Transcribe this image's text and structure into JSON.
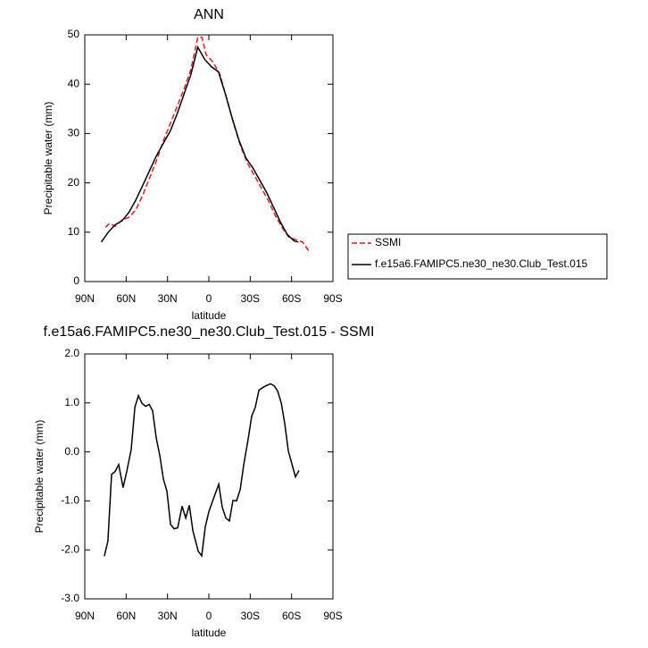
{
  "chart_data": [
    {
      "type": "line",
      "title": "ANN",
      "xlabel": "latitude",
      "ylabel": "Precipitable water (mm)",
      "xlim": [
        90,
        -90
      ],
      "ylim": [
        0,
        50
      ],
      "xticks": [
        {
          "value": 90,
          "label": "90N"
        },
        {
          "value": 60,
          "label": "60N"
        },
        {
          "value": 30,
          "label": "30N"
        },
        0,
        {
          "value": -30,
          "label": "30S"
        },
        {
          "value": -60,
          "label": "60S"
        },
        {
          "value": -90,
          "label": "90S"
        }
      ],
      "yticks": [
        0,
        10,
        20,
        30,
        40,
        50
      ],
      "legend": "outside right",
      "series": [
        {
          "name": "SSMI",
          "color": "#e8191c",
          "dash": true,
          "x": [
            75,
            72,
            68,
            63,
            58,
            53,
            48,
            43,
            38,
            33,
            28,
            23,
            18,
            13,
            8,
            5,
            2,
            -3,
            -8,
            -13,
            -18,
            -23,
            -28,
            -33,
            -38,
            -43,
            -48,
            -53,
            -58,
            -63,
            -68,
            -73
          ],
          "values": [
            11,
            11.8,
            11.2,
            12.5,
            13,
            14.5,
            17.5,
            21,
            24.5,
            28.5,
            32,
            35.5,
            39,
            43,
            49.5,
            49.5,
            46,
            44.5,
            42,
            37,
            32,
            27.5,
            24,
            21.5,
            19,
            16.5,
            13.5,
            11,
            9,
            8.5,
            8,
            6
          ]
        },
        {
          "name": "f.e15a6.FAMIPC5.ne30_ne30.Club_Test.015",
          "color": "#000000",
          "dash": false,
          "x": [
            78,
            73,
            68,
            63,
            58,
            53,
            48,
            43,
            38,
            33,
            28,
            23,
            18,
            13,
            8,
            3,
            -2,
            -7,
            -12,
            -17,
            -22,
            -27,
            -32,
            -37,
            -42,
            -47,
            -52,
            -57,
            -62,
            -65
          ],
          "values": [
            8,
            10,
            11.5,
            12.3,
            14,
            16.5,
            19.5,
            22.5,
            25.5,
            28,
            30.5,
            34,
            38,
            42,
            47.5,
            45,
            43.5,
            42.5,
            38,
            33,
            28.5,
            25,
            23,
            20.5,
            18,
            15,
            12,
            9.5,
            8.2,
            8
          ]
        }
      ]
    },
    {
      "type": "line",
      "title": "f.e15a6.FAMIPC5.ne30_ne30.Club_Test.015 - SSMI",
      "xlabel": "latitude",
      "ylabel": "Precipitable water (mm)",
      "xlim": [
        90,
        -90
      ],
      "ylim": [
        -3,
        2
      ],
      "xticks": [
        {
          "value": 90,
          "label": "90N"
        },
        {
          "value": 60,
          "label": "60N"
        },
        {
          "value": 30,
          "label": "30N"
        },
        0,
        {
          "value": -30,
          "label": "30S"
        },
        {
          "value": -60,
          "label": "60S"
        },
        {
          "value": -90,
          "label": "90S"
        }
      ],
      "yticks": [
        {
          "value": 2,
          "label": "2.0"
        },
        {
          "value": 1,
          "label": "1.0"
        },
        {
          "value": 0,
          "label": "0.0"
        },
        {
          "value": -1,
          "label": "-1.0"
        },
        {
          "value": -2,
          "label": "-2.0"
        },
        {
          "value": -3,
          "label": "-3.0"
        }
      ],
      "color": "#000000",
      "x": [
        75.8,
        73.2,
        70.6,
        68,
        65.4,
        62.2,
        59.6,
        56.3,
        53.7,
        51.1,
        48.5,
        45.9,
        43.3,
        40.8,
        38.2,
        35.6,
        33,
        30.4,
        27.8,
        25.2,
        22.6,
        19.4,
        16.8,
        14.2,
        11.6,
        7.7,
        5.2,
        2.6,
        0,
        -3.9,
        -7.2,
        -9.7,
        -12.3,
        -14.9,
        -17.5,
        -20.1,
        -22.7,
        -25.3,
        -28.5,
        -31.1,
        -33.7,
        -36.3,
        -38.9,
        -41.5,
        -44.7,
        -47.3,
        -49.9,
        -52.5,
        -55.1,
        -57.6,
        -62.8,
        -65.4
      ],
      "values": [
        -2.13,
        -1.82,
        -0.46,
        -0.4,
        -0.26,
        -0.73,
        -0.4,
        0.05,
        0.91,
        1.15,
        0.99,
        0.93,
        0.97,
        0.84,
        0.29,
        -0.07,
        -0.55,
        -0.8,
        -1.48,
        -1.57,
        -1.55,
        -1.11,
        -1.35,
        -1.09,
        -1.61,
        -2.03,
        -2.12,
        -1.53,
        -1.22,
        -0.91,
        -0.66,
        -1.13,
        -1.35,
        -1.41,
        -0.99,
        -1.0,
        -0.77,
        -0.26,
        0.26,
        0.73,
        0.91,
        1.26,
        1.31,
        1.35,
        1.39,
        1.35,
        1.24,
        1.0,
        0.57,
        0.02,
        -0.51,
        -0.38
      ]
    }
  ]
}
